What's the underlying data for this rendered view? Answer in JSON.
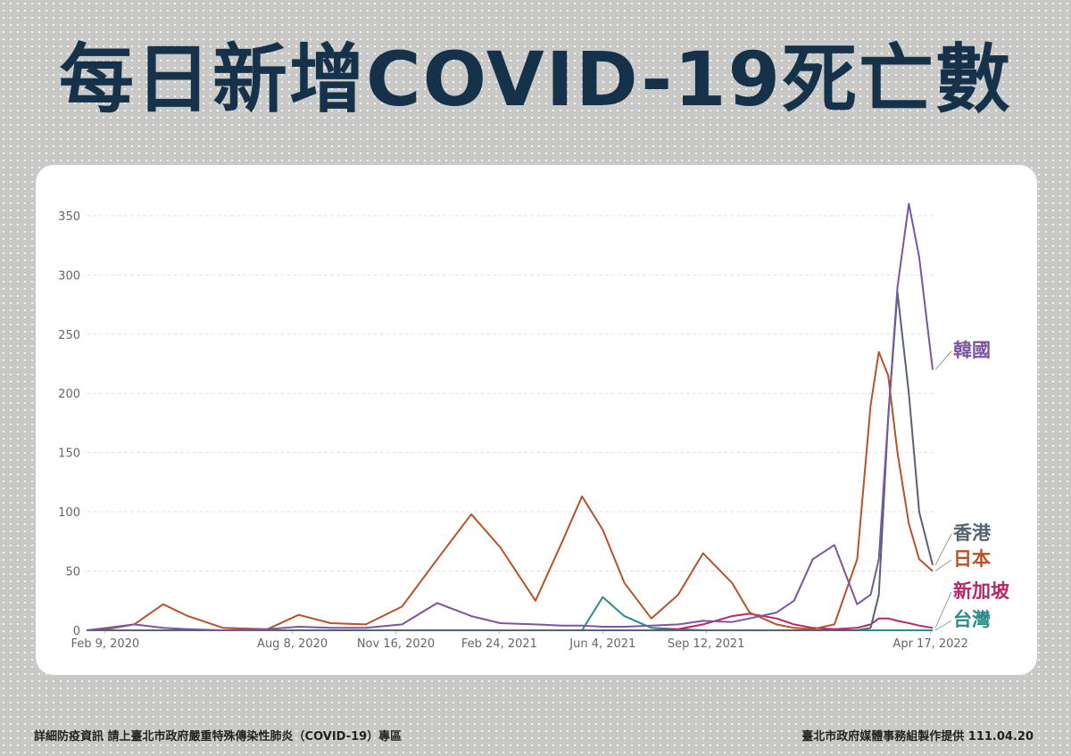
{
  "chart_data": {
    "type": "line",
    "title": "每日新增COVID-19死亡數",
    "x": [
      "2020-01-22",
      "2020-02-11",
      "2020-03-08",
      "2020-04-05",
      "2020-04-29",
      "2020-06-02",
      "2020-07-15",
      "2020-08-14",
      "2020-09-14",
      "2020-10-18",
      "2020-11-22",
      "2020-12-26",
      "2021-01-28",
      "2021-02-25",
      "2021-03-31",
      "2021-04-26",
      "2021-05-15",
      "2021-06-04",
      "2021-06-25",
      "2021-07-21",
      "2021-08-16",
      "2021-09-09",
      "2021-10-07",
      "2021-10-24",
      "2021-11-19",
      "2021-12-06",
      "2021-12-24",
      "2022-01-14",
      "2022-02-05",
      "2022-02-18",
      "2022-02-26",
      "2022-03-07",
      "2022-03-16",
      "2022-03-27",
      "2022-04-06",
      "2022-04-19"
    ],
    "series": [
      {
        "name": "韓國",
        "color": "#7b55a0",
        "values": [
          0,
          2,
          5,
          2,
          1,
          0,
          1,
          3,
          2,
          2,
          5,
          23,
          12,
          6,
          5,
          4,
          4,
          3,
          3,
          4,
          5,
          8,
          7,
          10,
          15,
          25,
          60,
          72,
          22,
          30,
          60,
          180,
          290,
          360,
          315,
          220
        ]
      },
      {
        "name": "香港",
        "color": "#556474",
        "values": [
          0,
          0,
          0,
          0,
          0,
          0,
          0,
          0,
          0,
          0,
          0,
          0,
          0,
          0,
          0,
          0,
          0,
          0,
          0,
          0,
          0,
          0,
          0,
          0,
          0,
          0,
          0,
          0,
          0,
          2,
          30,
          180,
          285,
          200,
          100,
          55
        ]
      },
      {
        "name": "日本",
        "color": "#b5532a",
        "values": [
          0,
          1,
          5,
          22,
          12,
          2,
          1,
          13,
          6,
          5,
          20,
          60,
          98,
          70,
          25,
          75,
          113,
          85,
          40,
          10,
          30,
          65,
          40,
          15,
          5,
          2,
          1,
          5,
          60,
          190,
          235,
          215,
          150,
          90,
          60,
          50
        ]
      },
      {
        "name": "新加坡",
        "color": "#b8266a",
        "values": [
          0,
          0,
          0,
          0,
          0,
          0,
          0,
          0,
          0,
          0,
          0,
          0,
          0,
          0,
          0,
          0,
          0,
          0,
          0,
          0,
          1,
          5,
          12,
          14,
          10,
          5,
          2,
          1,
          2,
          5,
          10,
          10,
          8,
          6,
          4,
          2
        ]
      },
      {
        "name": "台灣",
        "color": "#2e8b8b",
        "values": [
          0,
          0,
          0,
          0,
          0,
          0,
          0,
          0,
          0,
          0,
          0,
          0,
          0,
          0,
          0,
          0,
          0,
          28,
          12,
          2,
          1,
          0,
          0,
          0,
          0,
          0,
          0,
          0,
          0,
          0,
          0,
          0,
          0,
          0,
          0,
          0
        ]
      }
    ],
    "xlim": [
      "2020-01-22",
      "2022-04-19"
    ],
    "xticks": [
      {
        "value": "2020-02-09",
        "label": "Feb 9, 2020"
      },
      {
        "value": "2020-08-08",
        "label": "Aug 8, 2020"
      },
      {
        "value": "2020-11-16",
        "label": "Nov 16, 2020"
      },
      {
        "value": "2021-02-24",
        "label": "Feb 24, 2021"
      },
      {
        "value": "2021-06-04",
        "label": "Jun 4, 2021"
      },
      {
        "value": "2021-09-12",
        "label": "Sep 12, 2021"
      },
      {
        "value": "2022-04-17",
        "label": "Apr 17, 2022"
      }
    ],
    "ylim": [
      0,
      365
    ],
    "yticks": [
      0,
      50,
      100,
      150,
      200,
      250,
      300,
      350
    ],
    "grid": true
  },
  "footer": {
    "left": "詳細防疫資訊 請上臺北市政府嚴重特殊傳染性肺炎（COVID-19）專區",
    "right": "臺北市政府媒體事務組製作提供 111.04.20"
  }
}
